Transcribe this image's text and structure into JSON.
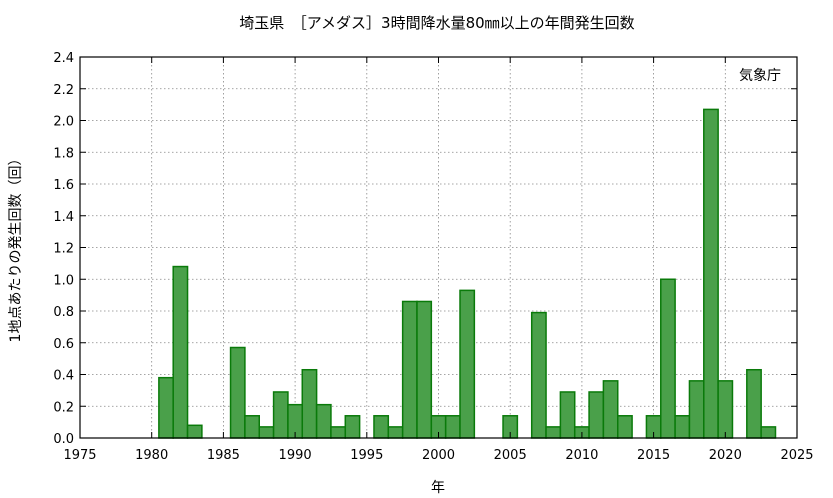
{
  "chart_data": {
    "type": "bar",
    "title": "埼玉県　［アメダス］3時間降水量80㎜以上の年間発生回数",
    "xlabel": "年",
    "ylabel": "1地点あたりの発生回数（回）",
    "source_note": "気象庁",
    "xlim": [
      1975,
      2025
    ],
    "ylim": [
      0,
      2.4
    ],
    "xticks": [
      1975,
      1980,
      1985,
      1990,
      1995,
      2000,
      2005,
      2010,
      2015,
      2020,
      2025
    ],
    "yticks": [
      "0.0",
      "0.2",
      "0.4",
      "0.6",
      "0.8",
      "1.0",
      "1.2",
      "1.4",
      "1.6",
      "1.8",
      "2.0",
      "2.2",
      "2.4"
    ],
    "grid": true,
    "bar_color": "#4aa04a",
    "bar_edge_color": "#0a7a0a",
    "x": [
      1976,
      1977,
      1978,
      1979,
      1980,
      1981,
      1982,
      1983,
      1984,
      1985,
      1986,
      1987,
      1988,
      1989,
      1990,
      1991,
      1992,
      1993,
      1994,
      1995,
      1996,
      1997,
      1998,
      1999,
      2000,
      2001,
      2002,
      2003,
      2004,
      2005,
      2006,
      2007,
      2008,
      2009,
      2010,
      2011,
      2012,
      2013,
      2014,
      2015,
      2016,
      2017,
      2018,
      2019,
      2020,
      2021,
      2022,
      2023
    ],
    "values": [
      0,
      0,
      0,
      0,
      0,
      0.38,
      1.08,
      0.08,
      0,
      0,
      0.57,
      0.14,
      0.07,
      0.29,
      0.21,
      0.43,
      0.21,
      0.07,
      0.14,
      0,
      0.14,
      0.07,
      0.86,
      0.86,
      0.14,
      0.14,
      0.93,
      0,
      0,
      0.14,
      0,
      0.79,
      0.07,
      0.29,
      0.07,
      0.29,
      0.36,
      0.14,
      0,
      0.14,
      1.0,
      0.14,
      0.36,
      2.07,
      0.36,
      0,
      0.43,
      0.07
    ]
  }
}
